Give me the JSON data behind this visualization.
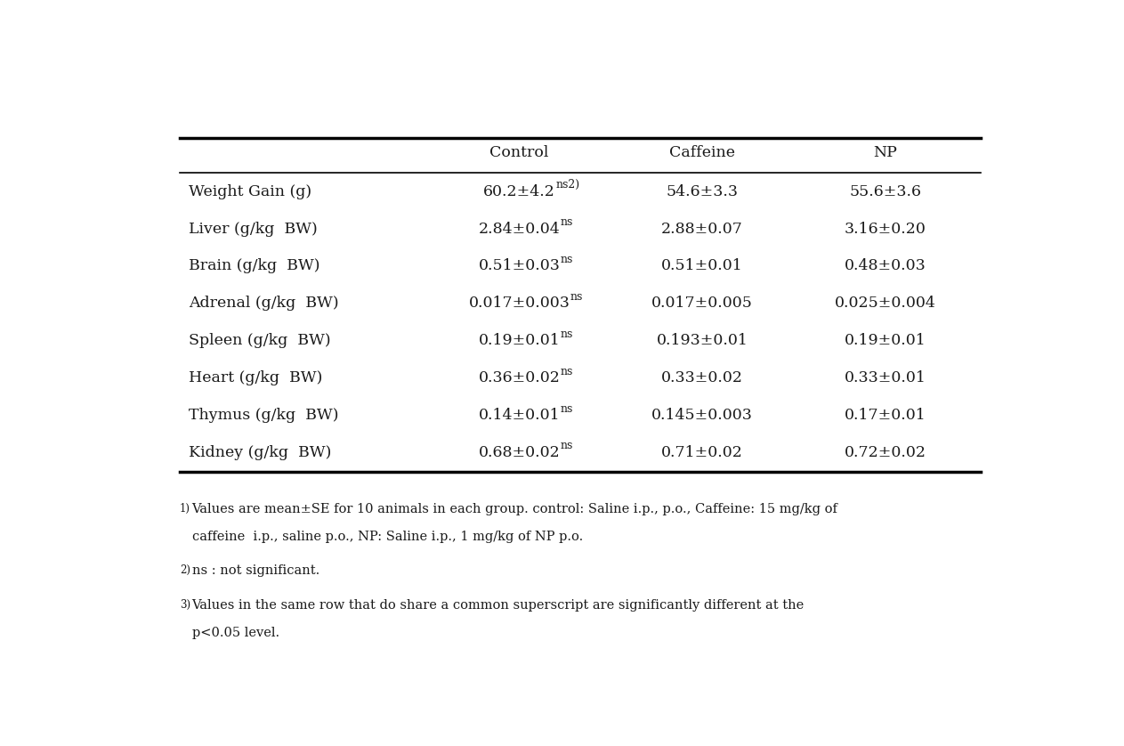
{
  "headers": [
    "",
    "Control",
    "Caffeine",
    "NP"
  ],
  "rows": [
    {
      "label": "Weight Gain (g)",
      "control": "60.2±4.2",
      "control_sup": "ns2)",
      "caffeine": "54.6±3.3",
      "np": "55.6±3.6"
    },
    {
      "label": "Liver (g/kg  BW)",
      "control": "2.84±0.04",
      "control_sup": "ns",
      "caffeine": "2.88±0.07",
      "np": "3.16±0.20"
    },
    {
      "label": "Brain (g/kg  BW)",
      "control": "0.51±0.03",
      "control_sup": "ns",
      "caffeine": "0.51±0.01",
      "np": "0.48±0.03"
    },
    {
      "label": "Adrenal (g/kg  BW)",
      "control": "0.017±0.003",
      "control_sup": "ns",
      "caffeine": "0.017±0.005",
      "np": "0.025±0.004"
    },
    {
      "label": "Spleen (g/kg  BW)",
      "control": "0.19±0.01",
      "control_sup": "ns",
      "caffeine": "0.193±0.01",
      "np": "0.19±0.01"
    },
    {
      "label": "Heart (g/kg  BW)",
      "control": "0.36±0.02",
      "control_sup": "ns",
      "caffeine": "0.33±0.02",
      "np": "0.33±0.01"
    },
    {
      "label": "Thymus (g/kg  BW)",
      "control": "0.14±0.01",
      "control_sup": "ns",
      "caffeine": "0.145±0.003",
      "np": "0.17±0.01"
    },
    {
      "label": "Kidney (g/kg  BW)",
      "control": "0.68±0.02",
      "control_sup": "ns",
      "caffeine": "0.71±0.02",
      "np": "0.72±0.02"
    }
  ],
  "fn1_sup": "1)",
  "fn1_line1": "Values are mean±SE for 10 animals in each group. control: Saline i.p., p.o., Caffeine: 15 mg/kg of",
  "fn1_line2": "caffeine  i.p., saline p.o., NP: Saline i.p., 1 mg/kg of NP p.o.",
  "fn2_sup": "2)",
  "fn2_text": "ns : not significant.",
  "fn3_sup": "3)",
  "fn3_line1": "Values in the same row that do share a common superscript are significantly different at the",
  "fn3_line2": "p<0.05 level.",
  "bg_color": "#ffffff",
  "text_color": "#1a1a1a",
  "font_size": 12.5,
  "header_font_size": 12.5,
  "footnote_font_size": 10.5
}
